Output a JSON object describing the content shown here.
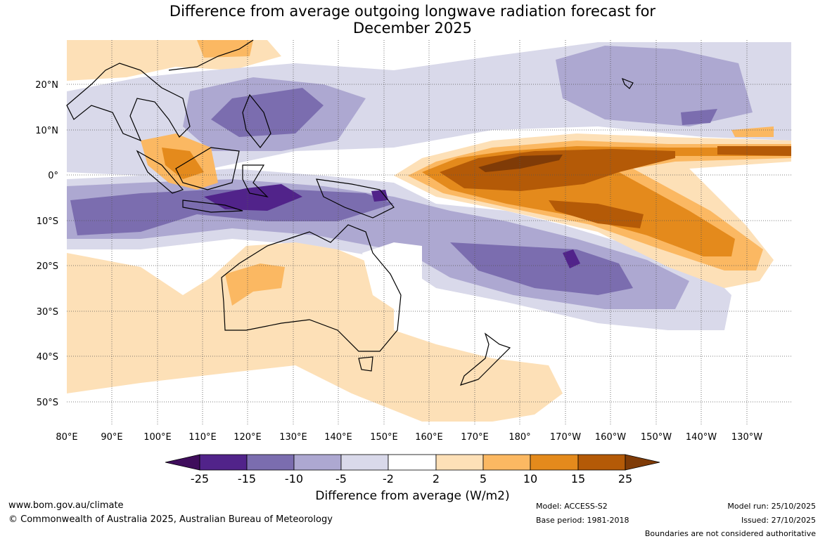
{
  "map": {
    "title_line1": "Difference from average outgoing longwave radiation forecast for",
    "title_line2": "December 2025",
    "lon_labels": [
      "80°E",
      "90°E",
      "100°E",
      "110°E",
      "120°E",
      "130°E",
      "140°E",
      "150°E",
      "160°E",
      "170°E",
      "180°",
      "170°W",
      "160°W",
      "150°W",
      "140°W",
      "130°W"
    ],
    "lat_labels": [
      "20°N",
      "10°N",
      "0°",
      "10°S",
      "20°S",
      "30°S",
      "40°S",
      "50°S"
    ]
  },
  "colorbar": {
    "title": "Difference from average (W/m2)",
    "ticks": [
      "-25",
      "-15",
      "-10",
      "-5",
      "-2",
      "2",
      "5",
      "10",
      "15",
      "25"
    ],
    "colors": {
      "below_min": "#3f0d5c",
      "c1": "#51238a",
      "c2": "#7b6daf",
      "c3": "#ada8d1",
      "c4": "#d9d9ea",
      "c5": "#ffffff",
      "c6": "#fde0b7",
      "c7": "#fbb862",
      "c8": "#e48a1c",
      "c9": "#b45a07",
      "above_max": "#7f3b07"
    }
  },
  "footer": {
    "site": "www.bom.gov.au/climate",
    "copyright": "© Commonwealth of Australia 2025, Australian Bureau of Meteorology",
    "model": "Model: ACCESS-S2",
    "base_period": "Base period: 1981-2018",
    "model_run": "Model run: 25/10/2025",
    "issued": "Issued: 27/10/2025",
    "disclaimer": "Boundaries are not considered authoritative"
  }
}
